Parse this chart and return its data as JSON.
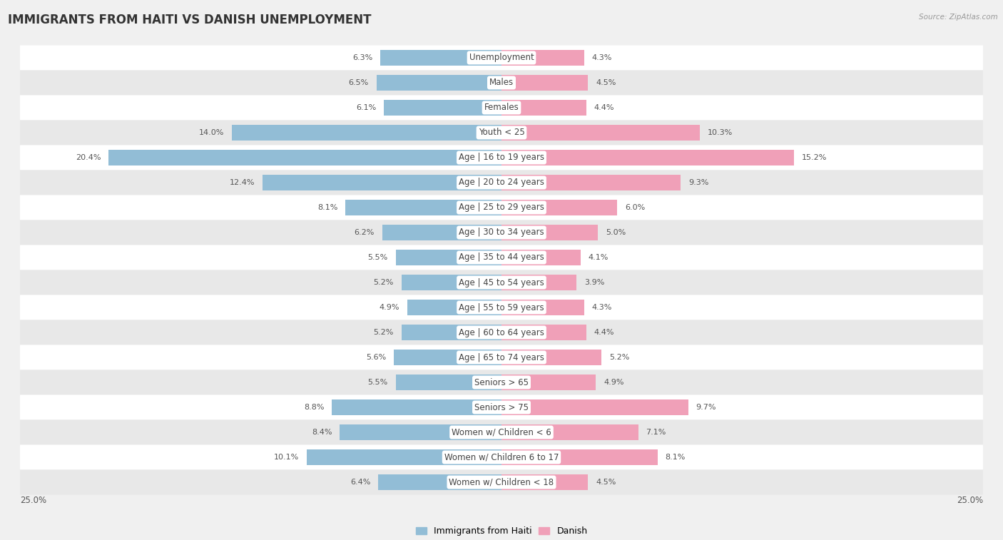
{
  "title": "IMMIGRANTS FROM HAITI VS DANISH UNEMPLOYMENT",
  "source": "Source: ZipAtlas.com",
  "categories": [
    "Unemployment",
    "Males",
    "Females",
    "Youth < 25",
    "Age | 16 to 19 years",
    "Age | 20 to 24 years",
    "Age | 25 to 29 years",
    "Age | 30 to 34 years",
    "Age | 35 to 44 years",
    "Age | 45 to 54 years",
    "Age | 55 to 59 years",
    "Age | 60 to 64 years",
    "Age | 65 to 74 years",
    "Seniors > 65",
    "Seniors > 75",
    "Women w/ Children < 6",
    "Women w/ Children 6 to 17",
    "Women w/ Children < 18"
  ],
  "haiti_values": [
    6.3,
    6.5,
    6.1,
    14.0,
    20.4,
    12.4,
    8.1,
    6.2,
    5.5,
    5.2,
    4.9,
    5.2,
    5.6,
    5.5,
    8.8,
    8.4,
    10.1,
    6.4
  ],
  "danish_values": [
    4.3,
    4.5,
    4.4,
    10.3,
    15.2,
    9.3,
    6.0,
    5.0,
    4.1,
    3.9,
    4.3,
    4.4,
    5.2,
    4.9,
    9.7,
    7.1,
    8.1,
    4.5
  ],
  "haiti_color": "#92bdd6",
  "danish_color": "#f0a0b8",
  "max_val": 25.0,
  "bg_color": "#f0f0f0",
  "row_color_light": "#ffffff",
  "row_color_dark": "#e8e8e8",
  "title_fontsize": 12,
  "label_fontsize": 8.5,
  "value_fontsize": 8.0,
  "legend_fontsize": 9,
  "axis_label_fontsize": 8.5,
  "highlight_row": 4
}
